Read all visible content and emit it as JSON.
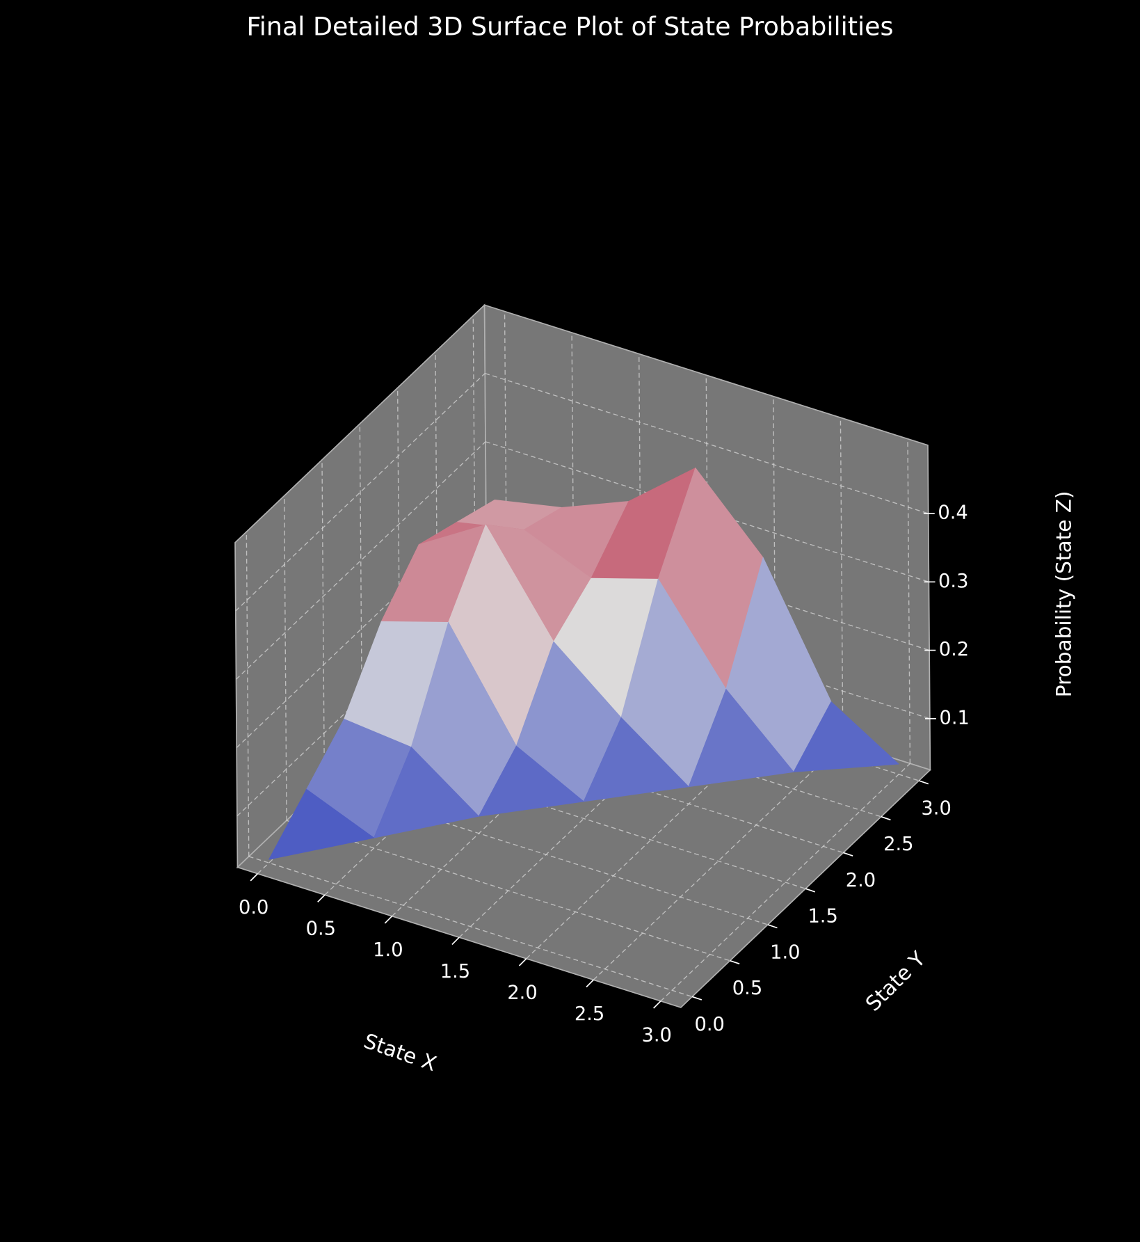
{
  "chart_data": {
    "type": "surface3d",
    "title": "Final Detailed 3D Surface Plot of State Probabilities",
    "xlabel": "State X",
    "ylabel": "State Y",
    "zlabel": "Probability (State Z)",
    "x": [
      0,
      0.5,
      1,
      1.5,
      2,
      2.5,
      3
    ],
    "y": [
      0,
      0.5,
      1,
      1.5,
      2,
      2.5,
      3
    ],
    "z": [
      [
        0.03,
        null,
        null,
        null,
        null,
        null,
        null
      ],
      [
        0.08,
        0.04,
        null,
        null,
        null,
        null,
        null
      ],
      [
        0.13,
        0.12,
        0.05,
        null,
        null,
        null,
        null
      ],
      [
        0.22,
        0.25,
        0.1,
        0.05,
        null,
        null,
        null
      ],
      [
        0.28,
        0.34,
        0.2,
        0.12,
        0.05,
        null,
        null
      ],
      [
        0.26,
        0.28,
        0.24,
        0.27,
        0.14,
        0.05,
        null
      ],
      [
        0.24,
        0.26,
        0.3,
        0.38,
        0.28,
        0.1,
        0.04
      ]
    ],
    "xlim": [
      -0.15,
      3.15
    ],
    "ylim": [
      -0.15,
      3.15
    ],
    "zlim": [
      0.025,
      0.5
    ],
    "xticks": [
      {
        "value": 0,
        "label": "0.0"
      },
      0.5,
      {
        "value": 1,
        "label": "1.0"
      },
      1.5,
      {
        "value": 2,
        "label": "2.0"
      },
      2.5,
      {
        "value": 3,
        "label": "3.0"
      }
    ],
    "yticks": [
      {
        "value": 0,
        "label": "0.0"
      },
      0.5,
      {
        "value": 1,
        "label": "1.0"
      },
      1.5,
      {
        "value": 2,
        "label": "2.0"
      },
      2.5,
      {
        "value": 3,
        "label": "3.0"
      }
    ],
    "zticks": [
      0.1,
      0.2,
      0.3,
      0.4
    ],
    "colormap": [
      "#3b4cc0",
      "#dddddd",
      "#b40426"
    ],
    "pane_color": "#777777",
    "background": "#000000",
    "grid": true
  }
}
